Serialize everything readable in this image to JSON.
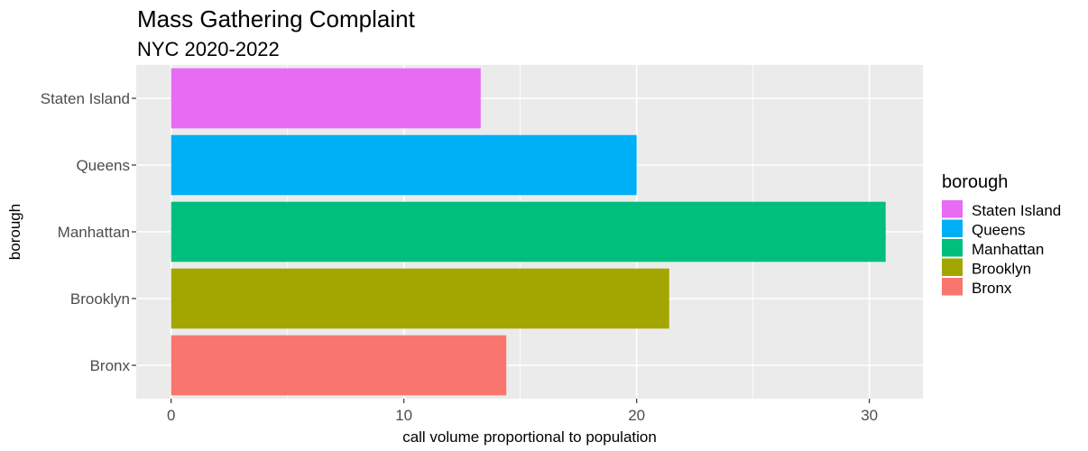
{
  "chart_data": {
    "type": "bar",
    "orientation": "horizontal",
    "title": "Mass Gathering Complaint",
    "subtitle": "NYC 2020-2022",
    "xlabel": "call volume proportional to population",
    "ylabel": "borough",
    "categories": [
      "Bronx",
      "Brooklyn",
      "Manhattan",
      "Queens",
      "Staten Island"
    ],
    "values": [
      14.4,
      21.4,
      30.7,
      20.0,
      13.3
    ],
    "colors": [
      "#F8766D",
      "#A3A500",
      "#00BF7D",
      "#00B0F6",
      "#E76BF3"
    ],
    "xlim": [
      -1.5,
      32.3
    ],
    "xticks": [
      0,
      10,
      20,
      30
    ],
    "xtick_labels": [
      "0",
      "10",
      "20",
      "30"
    ],
    "grid": true,
    "legend": {
      "title": "borough",
      "placement": "right",
      "items": [
        "Staten Island",
        "Queens",
        "Manhattan",
        "Brooklyn",
        "Bronx"
      ]
    },
    "background": "#EBEBEB",
    "grid_color": "#FFFFFF"
  }
}
